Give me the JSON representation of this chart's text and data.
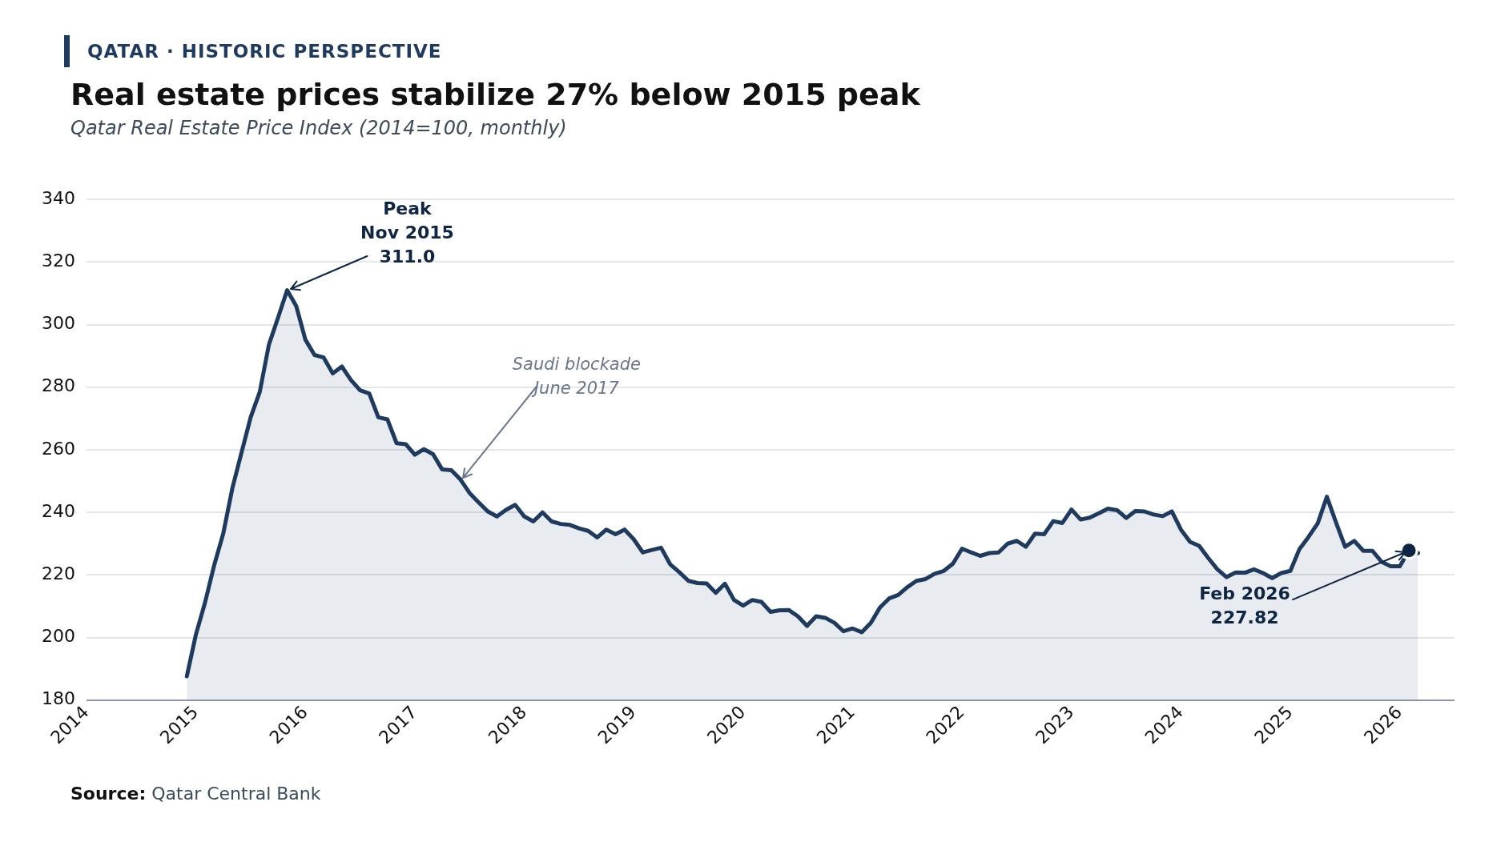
{
  "chart_data": {
    "type": "area",
    "title": "Real estate prices stabilize 27% below 2015 peak",
    "subtitle": "Qatar Real Estate Price Index (2014=100, monthly)",
    "x": [
      "2014-12",
      "2015-01",
      "2015-02",
      "2015-03",
      "2015-04",
      "2015-05",
      "2015-06",
      "2015-07",
      "2015-08",
      "2015-09",
      "2015-10",
      "2015-11",
      "2015-12",
      "2016-01",
      "2016-02",
      "2016-03",
      "2016-04",
      "2016-05",
      "2016-06",
      "2016-07",
      "2016-08",
      "2016-09",
      "2016-10",
      "2016-11",
      "2016-12",
      "2017-01",
      "2017-02",
      "2017-03",
      "2017-04",
      "2017-05",
      "2017-06",
      "2017-07",
      "2017-08",
      "2017-09",
      "2017-10",
      "2017-11",
      "2017-12",
      "2018-01",
      "2018-02",
      "2018-03",
      "2018-04",
      "2018-05",
      "2018-06",
      "2018-07",
      "2018-08",
      "2018-09",
      "2018-10",
      "2018-11",
      "2018-12",
      "2019-01",
      "2019-02",
      "2019-03",
      "2019-04",
      "2019-05",
      "2019-06",
      "2019-07",
      "2019-08",
      "2019-09",
      "2019-10",
      "2019-11",
      "2019-12",
      "2020-01",
      "2020-02",
      "2020-03",
      "2020-04",
      "2020-05",
      "2020-06",
      "2020-07",
      "2020-08",
      "2020-09",
      "2020-10",
      "2020-11",
      "2020-12",
      "2021-01",
      "2021-02",
      "2021-03",
      "2021-04",
      "2021-05",
      "2021-06",
      "2021-07",
      "2021-08",
      "2021-09",
      "2021-10",
      "2021-11",
      "2021-12",
      "2022-01",
      "2022-02",
      "2022-03",
      "2022-04",
      "2022-05",
      "2022-06",
      "2022-07",
      "2022-08",
      "2022-09",
      "2022-10",
      "2022-11",
      "2022-12",
      "2023-01",
      "2023-02",
      "2023-03",
      "2023-04",
      "2023-05",
      "2023-06",
      "2023-07",
      "2023-08",
      "2023-09",
      "2023-10",
      "2023-11",
      "2023-12",
      "2024-01",
      "2024-02",
      "2024-03",
      "2024-04",
      "2024-05",
      "2024-06",
      "2024-07",
      "2024-08",
      "2024-09",
      "2024-10",
      "2024-11",
      "2024-12",
      "2025-01",
      "2025-02",
      "2025-03",
      "2025-04",
      "2025-05",
      "2025-06",
      "2025-07",
      "2025-08",
      "2025-09",
      "2025-10",
      "2025-11",
      "2025-12",
      "2026-01",
      "2026-02",
      "2026-03"
    ],
    "series": [
      {
        "color": "#1f3a5f",
        "values": [
          187.6,
          201.0,
          211.2,
          223.1,
          233.3,
          247.8,
          259.1,
          270.4,
          278.5,
          293.6,
          302.2,
          311.0,
          305.9,
          295.2,
          290.3,
          289.5,
          284.4,
          286.6,
          282.3,
          279.0,
          278.0,
          270.4,
          269.7,
          262.1,
          261.8,
          258.4,
          260.2,
          258.6,
          253.7,
          253.5,
          250.5,
          246.2,
          243.2,
          240.3,
          238.7,
          240.8,
          242.4,
          238.7,
          237.1,
          240.0,
          237.1,
          236.3,
          236.0,
          234.9,
          234.1,
          232.0,
          234.5,
          233.0,
          234.5,
          231.4,
          227.2,
          228.0,
          228.7,
          223.4,
          220.9,
          218.1,
          217.4,
          217.3,
          214.3,
          217.2,
          212.0,
          210.2,
          212.0,
          211.4,
          208.2,
          208.7,
          208.8,
          206.8,
          203.7,
          206.8,
          206.3,
          204.7,
          202.0,
          202.9,
          201.7,
          204.7,
          209.6,
          212.5,
          213.6,
          216.1,
          218.1,
          218.7,
          220.4,
          221.3,
          223.6,
          228.4,
          227.2,
          226.1,
          227.0,
          227.2,
          230.0,
          230.9,
          229.0,
          233.2,
          233.0,
          237.2,
          236.6,
          240.9,
          237.7,
          238.3,
          239.7,
          241.2,
          240.7,
          238.2,
          240.4,
          240.3,
          239.3,
          238.8,
          240.3,
          234.5,
          230.6,
          229.3,
          225.4,
          221.8,
          219.3,
          220.8,
          220.7,
          221.8,
          220.6,
          219.0,
          220.6,
          221.3,
          228.3,
          232.2,
          236.5,
          245.0,
          236.8,
          229.0,
          230.9,
          227.7,
          227.7,
          224.2,
          222.8,
          222.8,
          227.82,
          227.0
        ]
      },
      {
        "type": "scatter",
        "marker": "circle",
        "color": "#0f2544",
        "x": [
          "2026-02"
        ],
        "values": [
          227.82
        ]
      }
    ],
    "xlim": [
      "2014-01",
      "2026-07"
    ],
    "xticks": [
      "2014",
      "2015",
      "2016",
      "2017",
      "2018",
      "2019",
      "2020",
      "2021",
      "2022",
      "2023",
      "2024",
      "2025",
      "2026"
    ],
    "ylim": [
      180,
      340
    ],
    "yticks": [
      180,
      200,
      220,
      240,
      260,
      280,
      300,
      320,
      340
    ],
    "grid": "y",
    "legend": false,
    "marker": "none",
    "annotations": [
      "QATAR · HISTORIC PERSPECTIVE",
      {
        "text": "Peak\nNov 2015\n311.0",
        "x": "2015-11",
        "y": 311.0
      },
      {
        "text": "Saudi blockade\nJune 2017",
        "x": "2017-06",
        "y": 250
      },
      {
        "text": "Feb 2026\n227.82",
        "x": "2026-02",
        "y": 227.82
      },
      "Source: Qatar Central Bank"
    ]
  }
}
